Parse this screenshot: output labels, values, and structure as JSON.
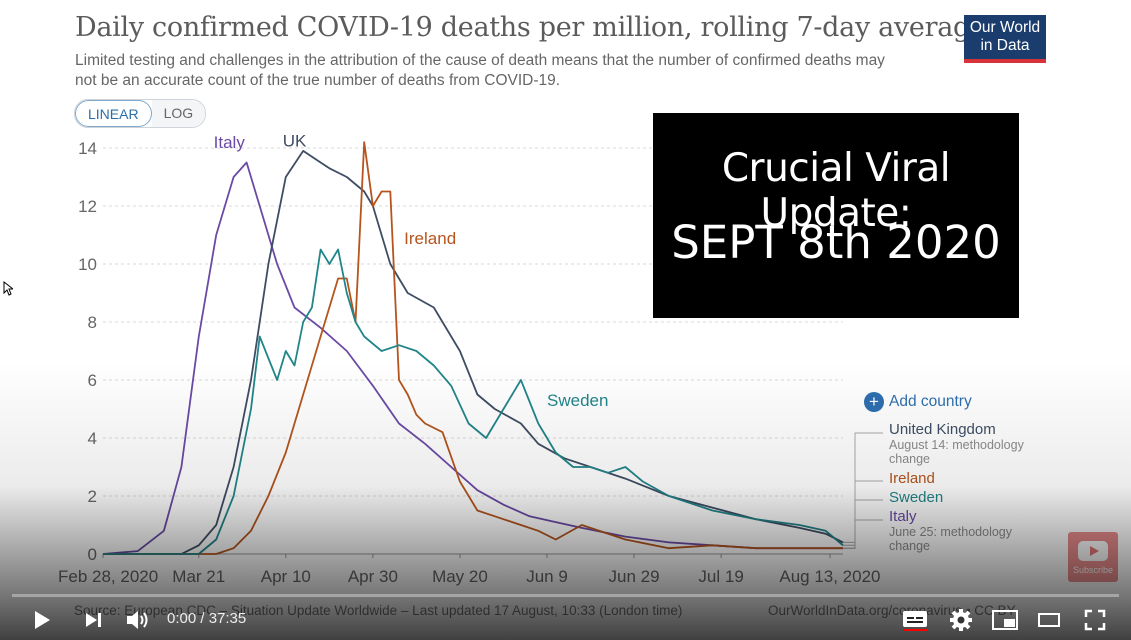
{
  "chart": {
    "title": "Daily confirmed COVID-19 deaths per million, rolling 7-day average",
    "subtitle": "Limited testing and challenges in the attribution of the cause of death means that the number of confirmed deaths may not be an accurate count of the true number of deaths from COVID-19.",
    "logo_line1": "Our World",
    "logo_line2": "in Data",
    "scale_linear": "LINEAR",
    "scale_log": "LOG",
    "add_country": "Add country",
    "source": "Source: European CDC – Situation Update Worldwide – Last updated 17 August, 10:33 (London time)",
    "source_right": "OurWorldInData.org/coronavirus • CC BY",
    "legend": {
      "uk": "United Kingdom",
      "uk_note": "August 14: methodology change",
      "ireland": "Ireland",
      "sweden": "Sweden",
      "italy": "Italy",
      "italy_note": "June 25: methodology change"
    }
  },
  "overlay": {
    "line1": "Crucial Viral Update:",
    "line2": "SEPT 8th 2020"
  },
  "player": {
    "time_current": "0:00",
    "time_total": "37:35",
    "time_display": "0:00 / 37:35",
    "progress": 0,
    "watermark_label": "Subscribe",
    "icons": [
      "play-icon",
      "next-icon",
      "volume-icon",
      "subtitles-icon",
      "settings-icon",
      "miniplayer-icon",
      "theater-icon",
      "fullscreen-icon"
    ]
  },
  "colors": {
    "italy": "#6b4aa6",
    "uk": "#3e4d63",
    "ireland": "#b5541c",
    "sweden": "#21858a",
    "grid": "#d9d9d9",
    "axis_text": "#666666"
  },
  "chart_data": {
    "type": "line",
    "title": "Daily confirmed COVID-19 deaths per million, rolling 7-day average",
    "ylim": [
      0,
      14
    ],
    "y_ticks": [
      0,
      2,
      4,
      6,
      8,
      10,
      12,
      14
    ],
    "x_ticks": [
      "Feb 28, 2020",
      "Mar 21",
      "Apr 10",
      "Apr 30",
      "May 20",
      "Jun 9",
      "Jun 29",
      "Jul 19",
      "Aug 13, 2020"
    ],
    "x_tick_days": [
      0,
      22,
      42,
      62,
      82,
      102,
      122,
      142,
      167
    ],
    "xlim_days": [
      0,
      170
    ],
    "x_note": "x values are days after Feb 28, 2020",
    "grid": true,
    "series": [
      {
        "name": "Italy",
        "key": "italy",
        "inline_label": "Italy",
        "x": [
          0,
          8,
          14,
          18,
          22,
          26,
          30,
          33,
          36,
          40,
          44,
          50,
          56,
          62,
          68,
          74,
          80,
          86,
          92,
          98,
          104,
          110,
          120,
          130,
          140,
          150,
          160,
          170
        ],
        "y": [
          0,
          0.1,
          0.8,
          3,
          7.5,
          11,
          13,
          13.5,
          12,
          10,
          8.5,
          7.8,
          7,
          5.8,
          4.5,
          3.8,
          3,
          2.2,
          1.7,
          1.3,
          1.1,
          0.9,
          0.6,
          0.4,
          0.3,
          0.2,
          0.2,
          0.2
        ]
      },
      {
        "name": "United Kingdom",
        "key": "uk",
        "inline_label": "UK",
        "x": [
          0,
          18,
          22,
          26,
          30,
          34,
          38,
          42,
          46,
          50,
          52,
          56,
          60,
          62,
          66,
          70,
          76,
          82,
          86,
          90,
          96,
          100,
          106,
          112,
          120,
          130,
          140,
          150,
          160,
          166,
          170
        ],
        "y": [
          0,
          0,
          0.3,
          1,
          3,
          6,
          10,
          13,
          13.9,
          13.5,
          13.3,
          13,
          12.5,
          12,
          10,
          9,
          8.5,
          7,
          5.5,
          5,
          4.5,
          3.8,
          3.3,
          3,
          2.6,
          2,
          1.6,
          1.2,
          0.9,
          0.7,
          0.4
        ]
      },
      {
        "name": "Ireland",
        "key": "ireland",
        "inline_label": "Ireland",
        "x": [
          0,
          26,
          30,
          34,
          38,
          42,
          46,
          50,
          54,
          56,
          58,
          60,
          62,
          64,
          66,
          68,
          70,
          72,
          74,
          78,
          82,
          86,
          90,
          96,
          100,
          104,
          110,
          120,
          130,
          140,
          150,
          160,
          170
        ],
        "y": [
          0,
          0,
          0.2,
          0.8,
          2,
          3.5,
          5.5,
          7.5,
          9.5,
          9.5,
          8,
          14.2,
          12,
          12.5,
          12.5,
          6,
          5.5,
          4.8,
          4.5,
          4.2,
          2.5,
          1.5,
          1.3,
          1,
          0.8,
          0.5,
          1,
          0.5,
          0.2,
          0.3,
          0.2,
          0.2,
          0.2
        ]
      },
      {
        "name": "Sweden",
        "key": "sweden",
        "inline_label": "Sweden",
        "x": [
          0,
          22,
          26,
          30,
          34,
          36,
          40,
          42,
          44,
          46,
          48,
          50,
          52,
          54,
          56,
          58,
          60,
          64,
          68,
          72,
          76,
          80,
          84,
          88,
          92,
          96,
          100,
          104,
          108,
          112,
          116,
          120,
          124,
          130,
          140,
          150,
          160,
          166,
          170
        ],
        "y": [
          0,
          0,
          0.5,
          2,
          5,
          7.5,
          6,
          7,
          6.5,
          8,
          8.5,
          10.5,
          10,
          10.5,
          9,
          8,
          7.5,
          7,
          7.2,
          7,
          6.5,
          5.8,
          4.5,
          4,
          5,
          6,
          4.5,
          3.5,
          3,
          3,
          2.8,
          3,
          2.5,
          2,
          1.5,
          1.2,
          1,
          0.8,
          0.3
        ]
      }
    ]
  }
}
